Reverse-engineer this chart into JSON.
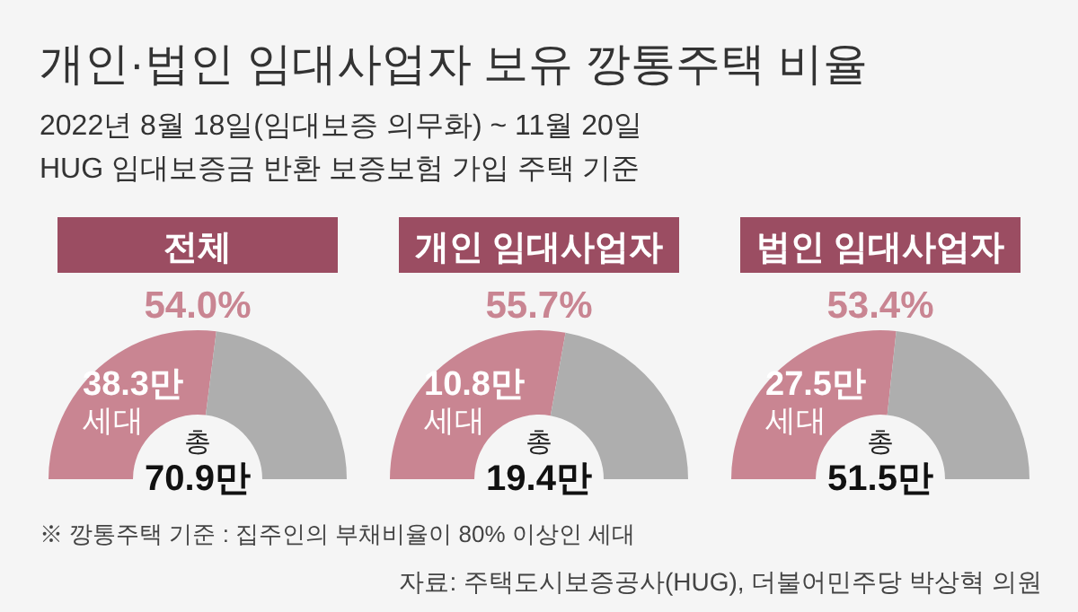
{
  "chart_data": [
    {
      "type": "other",
      "title": "개인·법인 임대사업자 보유 깡통주택 비율",
      "subtitle": "2022년 8월 18일(임대보증 의무화) ~ 11월 20일\nHUG 임대보증금 반환 보증보험 가입 주택 기준",
      "annotations": [
        "※ 깡통주택 기준 : 집주인의 부채비율이 80% 이상인 세대",
        "자료: 주택도시보증공사(HUG), 더불어민주당 박상혁 의원"
      ]
    },
    {
      "type": "donut",
      "title": "전체",
      "categories": [
        "38.3만 세대",
        null
      ],
      "values": [
        54.0,
        46.0
      ],
      "colors": [
        "#c98592",
        "#aeaeae"
      ],
      "value_labels": [
        "54.0%",
        null
      ],
      "annotations": [
        "총 70.9만"
      ]
    },
    {
      "type": "donut",
      "title": "개인 임대사업자",
      "categories": [
        "10.8만 세대",
        null
      ],
      "values": [
        55.7,
        44.3
      ],
      "colors": [
        "#c98592",
        "#aeaeae"
      ],
      "value_labels": [
        "55.7%",
        null
      ],
      "annotations": [
        "총 19.4만"
      ]
    },
    {
      "type": "donut",
      "title": "법인 임대사업자",
      "categories": [
        "27.5만 세대",
        null
      ],
      "values": [
        53.4,
        46.6
      ],
      "colors": [
        "#c98592",
        "#aeaeae"
      ],
      "value_labels": [
        "53.4%",
        null
      ],
      "annotations": [
        "총 51.5만"
      ]
    }
  ]
}
